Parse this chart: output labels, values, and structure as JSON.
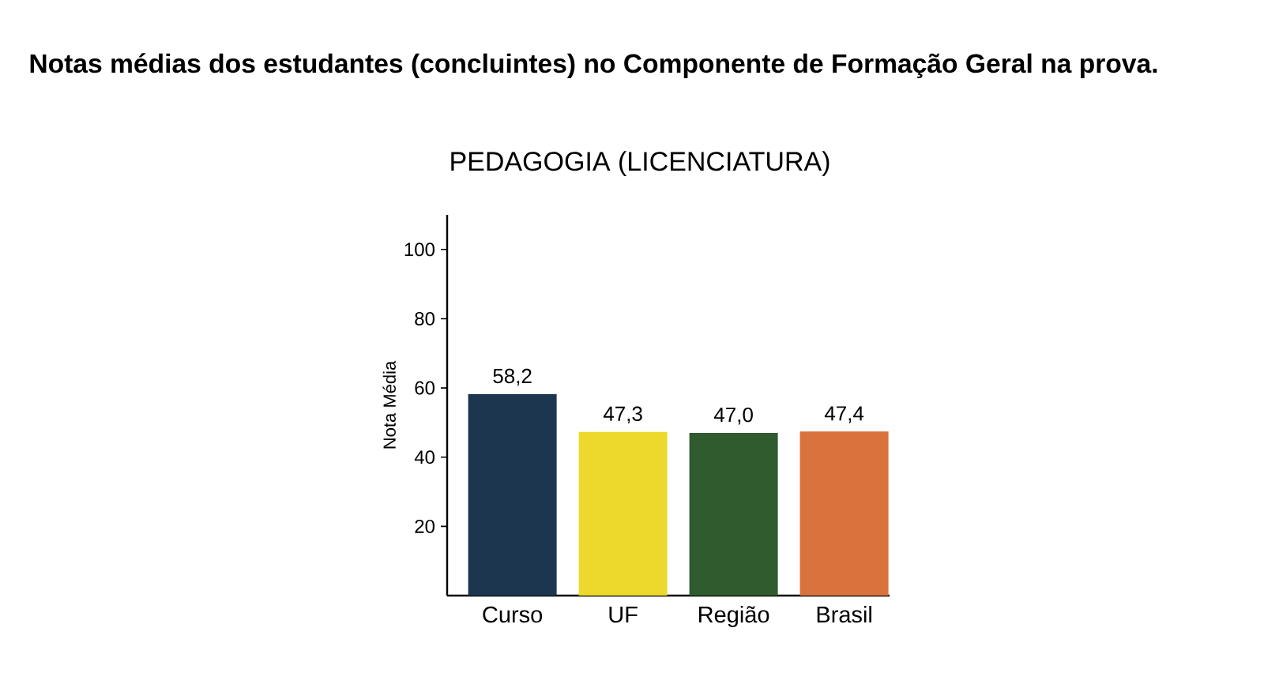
{
  "chart_data": {
    "type": "bar",
    "title": "Notas médias dos estudantes (concluintes) no Componente de Formação Geral na prova.",
    "subtitle": "PEDAGOGIA (LICENCIATURA)",
    "ylabel": "Nota Média",
    "categories": [
      "Curso",
      "UF",
      "Região",
      "Brasil"
    ],
    "values": [
      58.2,
      47.3,
      47.0,
      47.4
    ],
    "value_labels": [
      "58,2",
      "47,3",
      "47,0",
      "47,4"
    ],
    "colors": [
      "#1c3650",
      "#ecd92c",
      "#2f5b2f",
      "#d9723c"
    ],
    "ylim": [
      0,
      110
    ],
    "yticks": [
      20,
      40,
      60,
      80,
      100
    ]
  }
}
